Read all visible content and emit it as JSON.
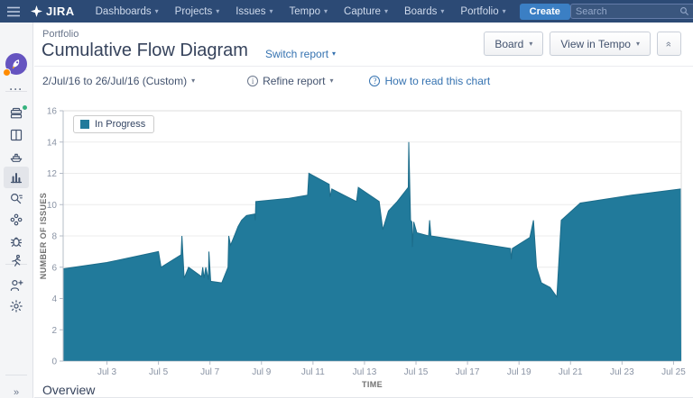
{
  "topbar": {
    "logo_text": "JIRA",
    "nav_items": [
      "Dashboards",
      "Projects",
      "Issues",
      "Tempo",
      "Capture",
      "Boards",
      "Portfolio"
    ],
    "create_label": "Create",
    "search_placeholder": "Search",
    "icons": [
      "app-switcher-icon",
      "search-icon",
      "announcement-icon",
      "help-icon",
      "settings-icon",
      "user-avatar"
    ]
  },
  "sidebar": {
    "items": [
      {
        "name": "project-avatar",
        "icon": "rocket"
      },
      {
        "name": "more",
        "icon": "ellipsis"
      },
      {
        "name": "backlog",
        "icon": "backlog",
        "badge": true
      },
      {
        "name": "board",
        "icon": "board"
      },
      {
        "name": "releases",
        "icon": "ship"
      },
      {
        "name": "reports",
        "icon": "bar-chart",
        "selected": true
      },
      {
        "name": "issues-search",
        "icon": "magnifier-lines"
      },
      {
        "name": "components",
        "icon": "components"
      },
      {
        "name": "bug",
        "icon": "bug"
      },
      {
        "name": "sprint",
        "icon": "runner"
      },
      {
        "name": "add-user",
        "icon": "add-user"
      },
      {
        "name": "project-settings",
        "icon": "gear"
      },
      {
        "name": "expand-sidebar",
        "icon": "double-chevron-right"
      }
    ]
  },
  "header": {
    "breadcrumb": "Portfolio",
    "title": "Cumulative Flow Diagram",
    "switch_report_label": "Switch report",
    "board_button": "Board",
    "view_in_tempo_button": "View in Tempo"
  },
  "controls": {
    "date_range": "2/Jul/16 to 26/Jul/16 (Custom)",
    "refine_report": "Refine report",
    "help_link": "How to read this chart"
  },
  "footer": {
    "overview_label": "Overview"
  },
  "chart_data": {
    "type": "area",
    "title": "Cumulative Flow Diagram",
    "xlabel": "TIME",
    "ylabel": "NUMBER OF ISSUES",
    "legend": [
      "In Progress"
    ],
    "legend_position": "top-left",
    "grid": "horizontal",
    "ylim": [
      0,
      16
    ],
    "y_ticks": [
      0,
      2,
      4,
      6,
      8,
      10,
      12,
      14,
      16
    ],
    "xlim_july_days": [
      1.3,
      25.3
    ],
    "x_ticks": [
      {
        "day": 3,
        "label": "Jul 3"
      },
      {
        "day": 5,
        "label": "Jul 5"
      },
      {
        "day": 7,
        "label": "Jul 7"
      },
      {
        "day": 9,
        "label": "Jul 9"
      },
      {
        "day": 11,
        "label": "Jul 11"
      },
      {
        "day": 13,
        "label": "Jul 13"
      },
      {
        "day": 15,
        "label": "Jul 15"
      },
      {
        "day": 17,
        "label": "Jul 17"
      },
      {
        "day": 19,
        "label": "Jul 19"
      },
      {
        "day": 21,
        "label": "Jul 21"
      },
      {
        "day": 23,
        "label": "Jul 23"
      },
      {
        "day": 25,
        "label": "Jul 25"
      }
    ],
    "series": [
      {
        "name": "In Progress",
        "color": "#217a9b",
        "points": [
          [
            1.3,
            5.9
          ],
          [
            3.0,
            6.3
          ],
          [
            5.0,
            7.0
          ],
          [
            5.1,
            6.0
          ],
          [
            5.88,
            6.8
          ],
          [
            5.91,
            8.0
          ],
          [
            6.0,
            5.3
          ],
          [
            6.17,
            6.0
          ],
          [
            6.67,
            5.4
          ],
          [
            6.72,
            6.0
          ],
          [
            6.77,
            5.3
          ],
          [
            6.84,
            6.0
          ],
          [
            6.94,
            5.2
          ],
          [
            6.96,
            7.0
          ],
          [
            7.03,
            5.1
          ],
          [
            7.46,
            5.0
          ],
          [
            7.7,
            6.0
          ],
          [
            7.73,
            8.0
          ],
          [
            7.8,
            7.4
          ],
          [
            7.97,
            8.1
          ],
          [
            8.09,
            8.6
          ],
          [
            8.23,
            9.0
          ],
          [
            8.42,
            9.3
          ],
          [
            8.73,
            9.4
          ],
          [
            8.76,
            9.0
          ],
          [
            8.78,
            10.2
          ],
          [
            10.07,
            10.4
          ],
          [
            10.79,
            10.6
          ],
          [
            10.84,
            12.0
          ],
          [
            11.63,
            11.3
          ],
          [
            11.66,
            10.5
          ],
          [
            11.73,
            11.0
          ],
          [
            12.69,
            10.2
          ],
          [
            12.76,
            11.1
          ],
          [
            13.57,
            10.2
          ],
          [
            13.71,
            8.4
          ],
          [
            13.93,
            9.6
          ],
          [
            14.27,
            10.2
          ],
          [
            14.7,
            11.1
          ],
          [
            14.72,
            14.0
          ],
          [
            14.79,
            9.0
          ],
          [
            14.84,
            8.9
          ],
          [
            14.86,
            7.3
          ],
          [
            14.91,
            8.9
          ],
          [
            15.03,
            8.2
          ],
          [
            15.49,
            8.0
          ],
          [
            15.53,
            9.0
          ],
          [
            15.58,
            8.0
          ],
          [
            16.37,
            7.8
          ],
          [
            18.67,
            7.2
          ],
          [
            18.7,
            6.5
          ],
          [
            18.74,
            7.2
          ],
          [
            19.42,
            7.9
          ],
          [
            19.56,
            9.0
          ],
          [
            19.68,
            6.0
          ],
          [
            19.87,
            5.0
          ],
          [
            20.21,
            4.7
          ],
          [
            20.47,
            4.1
          ],
          [
            20.64,
            9.0
          ],
          [
            21.38,
            10.1
          ],
          [
            23.37,
            10.6
          ],
          [
            25.28,
            11.0
          ]
        ]
      }
    ]
  }
}
